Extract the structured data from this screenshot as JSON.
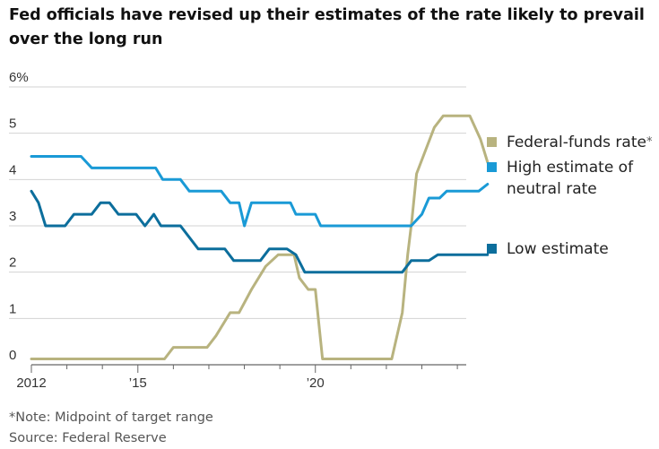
{
  "title": "Fed officials have revised up their estimates of the rate likely to prevail over the long run",
  "footnote": "*Note: Midpoint of target range",
  "source": "Source: Federal Reserve",
  "chart_data": {
    "type": "line",
    "title": "Fed officials have revised up their estimates of the rate likely to prevail over the long run",
    "xlabel": "",
    "ylabel": "",
    "xlim": [
      2012.0,
      2024.25
    ],
    "ylim": [
      0,
      6
    ],
    "grid": true,
    "legend_position": "right",
    "y_ticks": [
      {
        "value": 0,
        "label": "0"
      },
      {
        "value": 1,
        "label": "1"
      },
      {
        "value": 2,
        "label": "2"
      },
      {
        "value": 3,
        "label": "3"
      },
      {
        "value": 4,
        "label": "4"
      },
      {
        "value": 5,
        "label": "5"
      },
      {
        "value": 6,
        "label": "6%"
      }
    ],
    "x_ticks": [
      {
        "value": 2012,
        "label": "2012"
      },
      {
        "value": 2015,
        "label": "’15"
      },
      {
        "value": 2020,
        "label": "’20"
      }
    ],
    "series": [
      {
        "name": "Federal-funds rate",
        "note": "*",
        "color": "#b8b37f",
        "points": [
          [
            2012.0,
            0.125
          ],
          [
            2015.75,
            0.125
          ],
          [
            2016.0,
            0.375
          ],
          [
            2016.95,
            0.375
          ],
          [
            2017.2,
            0.625
          ],
          [
            2017.6,
            1.125
          ],
          [
            2017.85,
            1.125
          ],
          [
            2018.2,
            1.625
          ],
          [
            2018.6,
            2.125
          ],
          [
            2018.95,
            2.375
          ],
          [
            2019.4,
            2.375
          ],
          [
            2019.55,
            1.875
          ],
          [
            2019.8,
            1.625
          ],
          [
            2020.0,
            1.625
          ],
          [
            2020.2,
            0.125
          ],
          [
            2022.15,
            0.125
          ],
          [
            2022.45,
            1.125
          ],
          [
            2022.6,
            2.375
          ],
          [
            2022.72,
            3.125
          ],
          [
            2022.85,
            4.125
          ],
          [
            2023.1,
            4.625
          ],
          [
            2023.35,
            5.125
          ],
          [
            2023.6,
            5.375
          ],
          [
            2024.35,
            5.375
          ],
          [
            2024.65,
            4.875
          ],
          [
            2024.85,
            4.375
          ]
        ]
      },
      {
        "name": "High estimate of neutral rate",
        "color": "#1a9ad6",
        "points": [
          [
            2012.0,
            4.5
          ],
          [
            2013.4,
            4.5
          ],
          [
            2013.7,
            4.25
          ],
          [
            2015.5,
            4.25
          ],
          [
            2015.7,
            4.0
          ],
          [
            2016.2,
            4.0
          ],
          [
            2016.45,
            3.75
          ],
          [
            2017.35,
            3.75
          ],
          [
            2017.6,
            3.5
          ],
          [
            2017.85,
            3.5
          ],
          [
            2018.0,
            3.0
          ],
          [
            2018.2,
            3.5
          ],
          [
            2019.3,
            3.5
          ],
          [
            2019.45,
            3.25
          ],
          [
            2020.0,
            3.25
          ],
          [
            2020.15,
            3.0
          ],
          [
            2022.7,
            3.0
          ],
          [
            2023.0,
            3.25
          ],
          [
            2023.2,
            3.6
          ],
          [
            2023.5,
            3.6
          ],
          [
            2023.7,
            3.75
          ],
          [
            2024.6,
            3.75
          ],
          [
            2024.85,
            3.9
          ]
        ]
      },
      {
        "name": "Low estimate",
        "color": "#0c6e9c",
        "points": [
          [
            2012.0,
            3.75
          ],
          [
            2012.2,
            3.5
          ],
          [
            2012.4,
            3.0
          ],
          [
            2012.95,
            3.0
          ],
          [
            2013.2,
            3.25
          ],
          [
            2013.7,
            3.25
          ],
          [
            2013.95,
            3.5
          ],
          [
            2014.2,
            3.5
          ],
          [
            2014.45,
            3.25
          ],
          [
            2014.95,
            3.25
          ],
          [
            2015.2,
            3.0
          ],
          [
            2015.45,
            3.25
          ],
          [
            2015.65,
            3.0
          ],
          [
            2016.2,
            3.0
          ],
          [
            2016.7,
            2.5
          ],
          [
            2017.45,
            2.5
          ],
          [
            2017.7,
            2.25
          ],
          [
            2018.45,
            2.25
          ],
          [
            2018.7,
            2.5
          ],
          [
            2019.2,
            2.5
          ],
          [
            2019.45,
            2.375
          ],
          [
            2019.7,
            2.0
          ],
          [
            2022.45,
            2.0
          ],
          [
            2022.7,
            2.25
          ],
          [
            2023.2,
            2.25
          ],
          [
            2023.45,
            2.375
          ],
          [
            2024.85,
            2.375
          ]
        ]
      }
    ]
  },
  "legend": [
    {
      "label": "Federal-funds rate",
      "note": "*",
      "color": "#b8b37f"
    },
    {
      "label": "High estimate of neutral rate",
      "note": "",
      "color": "#1a9ad6"
    },
    {
      "label": "Low estimate",
      "note": "",
      "color": "#0c6e9c"
    }
  ]
}
